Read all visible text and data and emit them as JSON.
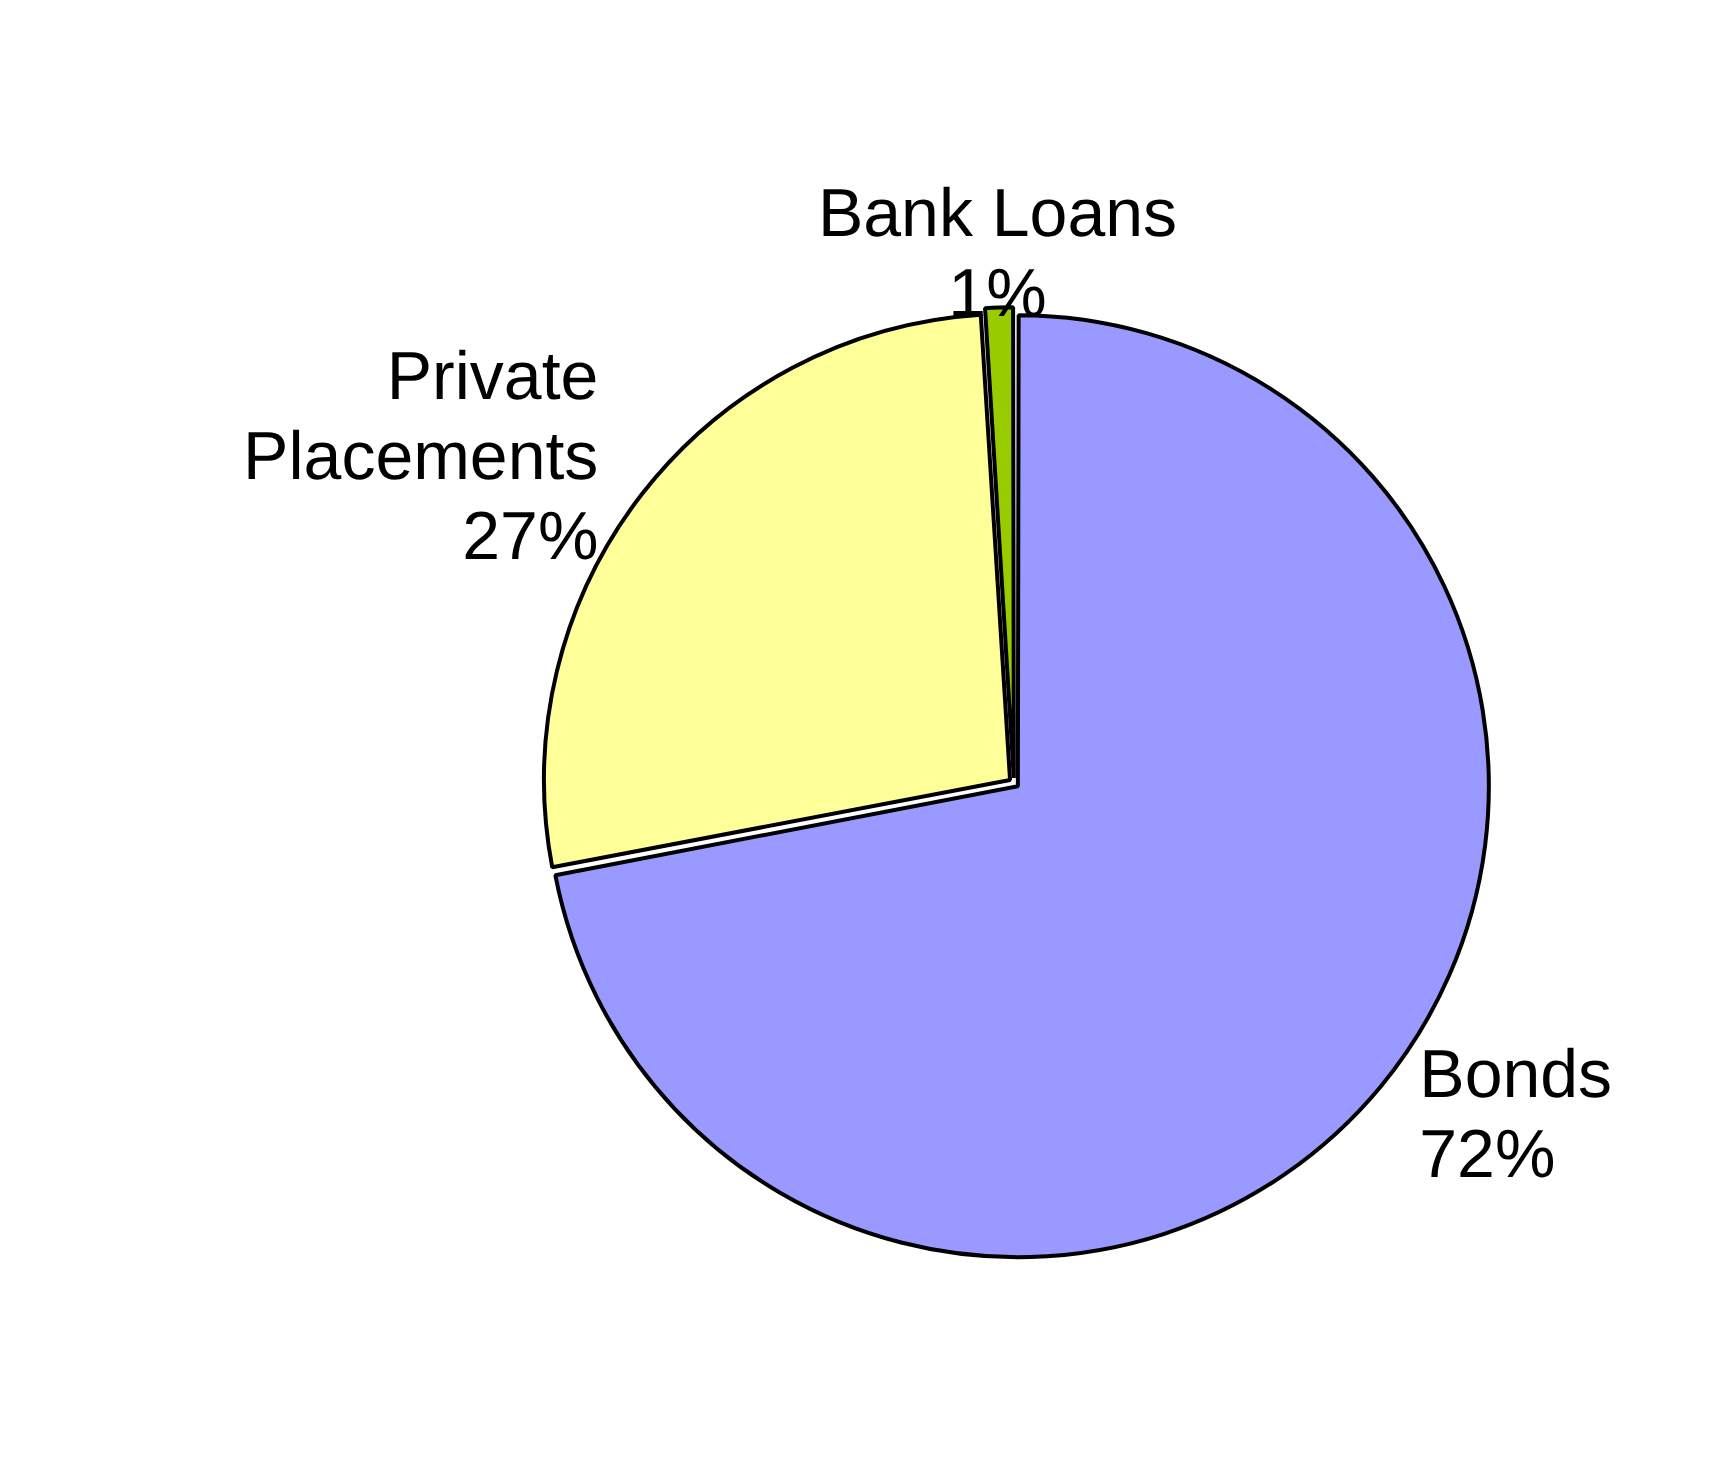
{
  "chart_data": {
    "type": "pie",
    "categories": [
      "Bonds",
      "Private Placements",
      "Bank Loans"
    ],
    "values": [
      72,
      27,
      1
    ],
    "value_labels": [
      "72%",
      "27%",
      "1%"
    ],
    "colors": [
      "#9999ff",
      "#ffff99",
      "#99cc00"
    ],
    "legend": false
  }
}
